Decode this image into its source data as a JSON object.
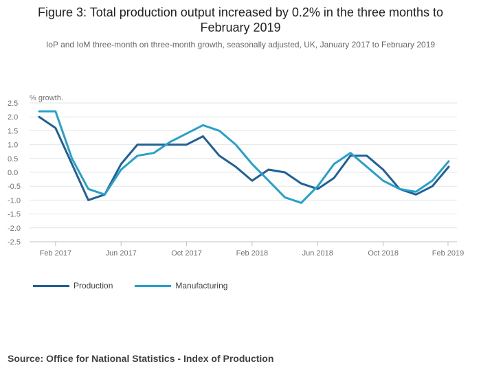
{
  "title": "Figure 3: Total production output increased by 0.2% in the three months to February 2019",
  "subtitle": "IoP and IoM three-month on three-month growth, seasonally adjusted, UK, January 2017 to February 2019",
  "source": "Source: Office for National Statistics - Index of Production",
  "chart_data": {
    "type": "line",
    "ylabel": "% growth.",
    "ylim": [
      -2.5,
      2.5
    ],
    "yticks": [
      "2.5",
      "2.0",
      "1.5",
      "1.0",
      "0.5",
      "0.0",
      "-0.5",
      "-1.0",
      "-1.5",
      "-2.0",
      "-2.5"
    ],
    "ytick_values": [
      2.5,
      2.0,
      1.5,
      1.0,
      0.5,
      0.0,
      -0.5,
      -1.0,
      -1.5,
      -2.0,
      -2.5
    ],
    "x": [
      "Jan 2017",
      "Feb 2017",
      "Mar 2017",
      "Apr 2017",
      "May 2017",
      "Jun 2017",
      "Jul 2017",
      "Aug 2017",
      "Sep 2017",
      "Oct 2017",
      "Nov 2017",
      "Dec 2017",
      "Jan 2018",
      "Feb 2018",
      "Mar 2018",
      "Apr 2018",
      "May 2018",
      "Jun 2018",
      "Jul 2018",
      "Aug 2018",
      "Sep 2018",
      "Oct 2018",
      "Nov 2018",
      "Dec 2018",
      "Jan 2019",
      "Feb 2019"
    ],
    "xtick_labels": [
      "Feb 2017",
      "Jun 2017",
      "Oct 2017",
      "Feb 2018",
      "Jun 2018",
      "Oct 2018",
      "Feb 2019"
    ],
    "xtick_indices": [
      1,
      5,
      9,
      13,
      17,
      21,
      25
    ],
    "grid": true,
    "legend_position": "bottom-left",
    "series": [
      {
        "name": "Production",
        "color": "#206095",
        "values": [
          2.0,
          1.6,
          0.3,
          -1.0,
          -0.8,
          0.3,
          1.0,
          1.0,
          1.0,
          1.0,
          1.3,
          0.6,
          0.2,
          -0.3,
          0.1,
          0.0,
          -0.4,
          -0.6,
          -0.2,
          0.6,
          0.6,
          0.1,
          -0.6,
          -0.8,
          -0.5,
          0.2
        ]
      },
      {
        "name": "Manufacturing",
        "color": "#27A0CC",
        "values": [
          2.2,
          2.2,
          0.5,
          -0.6,
          -0.8,
          0.1,
          0.6,
          0.7,
          1.1,
          1.4,
          1.7,
          1.5,
          1.0,
          0.3,
          -0.3,
          -0.9,
          -1.1,
          -0.5,
          0.3,
          0.7,
          0.2,
          -0.3,
          -0.6,
          -0.7,
          -0.3,
          0.4
        ]
      }
    ]
  }
}
